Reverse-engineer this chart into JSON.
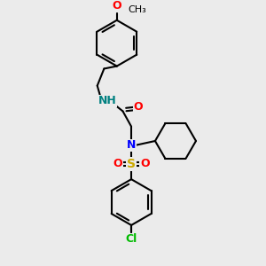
{
  "bg_color": "#ebebeb",
  "bond_color": "#000000",
  "bond_lw": 1.5,
  "atom_colors": {
    "O": "#ff0000",
    "N": "#0000ff",
    "N_teal": "#008080",
    "S": "#ccaa00",
    "Cl": "#00bb00"
  },
  "font_size": 9,
  "font_size_small": 8
}
